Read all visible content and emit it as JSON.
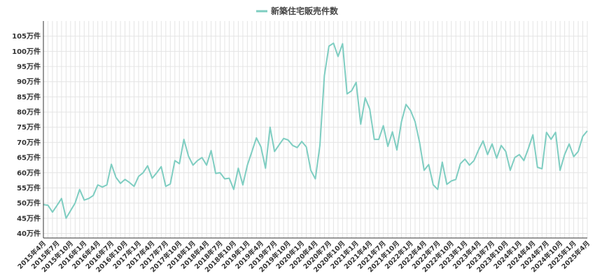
{
  "chart_data": {
    "type": "line",
    "title": "",
    "xlabel": "",
    "ylabel": "",
    "ylim": [
      38.5,
      110
    ],
    "yticks": [
      40,
      45,
      50,
      55,
      60,
      65,
      70,
      75,
      80,
      85,
      90,
      95,
      100,
      105
    ],
    "ytick_suffix": "万件",
    "xtick_labels": [
      "2015年4月",
      "2015年7月",
      "2015年10月",
      "2016年1月",
      "2016年4月",
      "2016年7月",
      "2016年10月",
      "2017年1月",
      "2017年4月",
      "2017年7月",
      "2017年10月",
      "2018年1月",
      "2018年4月",
      "2018年7月",
      "2018年10月",
      "2019年1月",
      "2019年4月",
      "2019年7月",
      "2019年10月",
      "2020年1月",
      "2020年4月",
      "2020年7月",
      "2020年10月",
      "2021年1月",
      "2021年4月",
      "2021年7月",
      "2021年10月",
      "2022年1月",
      "2022年4月",
      "2022年7月",
      "2022年10月",
      "2023年1月",
      "2023年4月",
      "2023年7月",
      "2023年10月",
      "2024年1月",
      "2024年4月",
      "2024年7月",
      "2024年10月",
      "2025年1月",
      "2025年4月"
    ],
    "grid": true,
    "legend": "top-center",
    "series": [
      {
        "name": "新築住宅販売件数",
        "color": "#7ecdc1",
        "values": [
          49.5,
          49.3,
          47.0,
          49.2,
          51.5,
          45.0,
          47.5,
          50.0,
          54.5,
          51.0,
          51.5,
          52.5,
          56.0,
          55.3,
          56.0,
          62.8,
          58.5,
          56.5,
          57.8,
          56.8,
          55.5,
          58.8,
          60.0,
          62.3,
          58.2,
          60.0,
          62.0,
          55.5,
          56.3,
          64.0,
          63.0,
          71.0,
          65.5,
          62.5,
          64.0,
          65.0,
          62.5,
          67.3,
          59.8,
          60.0,
          58.0,
          58.2,
          54.5,
          61.5,
          56.0,
          62.5,
          67.0,
          71.5,
          68.5,
          61.5,
          75.0,
          67.0,
          69.2,
          71.3,
          70.8,
          69.0,
          68.3,
          70.3,
          68.5,
          60.8,
          58.0,
          69.0,
          92.0,
          101.7,
          102.7,
          98.3,
          102.5,
          86.0,
          87.0,
          89.8,
          76.0,
          84.7,
          81.0,
          71.0,
          71.0,
          75.5,
          68.7,
          73.5,
          67.5,
          76.8,
          82.5,
          80.5,
          76.8,
          70.0,
          60.8,
          62.7,
          56.0,
          54.5,
          63.5,
          56.2,
          57.3,
          57.8,
          63.0,
          64.5,
          62.5,
          64.0,
          67.5,
          70.5,
          66.0,
          69.5,
          64.8,
          69.0,
          67.0,
          60.8,
          65.0,
          66.0,
          64.0,
          68.0,
          72.5,
          61.8,
          61.3,
          73.3,
          71.0,
          73.3,
          60.8,
          66.0,
          69.5,
          65.3,
          67.0,
          72.0,
          73.8
        ]
      }
    ]
  }
}
